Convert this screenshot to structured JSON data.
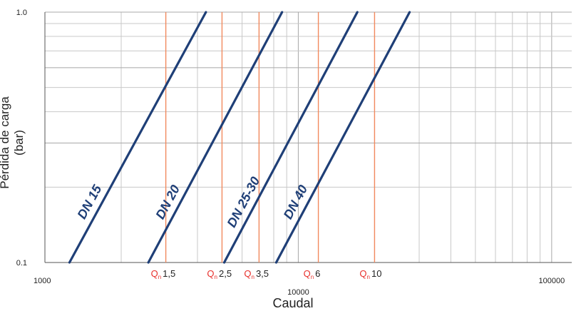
{
  "chart_data": {
    "type": "line",
    "xlabel": "Caudal",
    "ylabel": "Pérdida de carga (bar)",
    "x_scale": "log",
    "y_scale": "log",
    "xlim": [
      1000,
      120000
    ],
    "ylim": [
      0.1,
      1.0
    ],
    "x_ticks": [
      {
        "value": 1000,
        "label": "1000"
      },
      {
        "value": 10000,
        "label": "10000"
      },
      {
        "value": 100000,
        "label": "100000"
      }
    ],
    "y_ticks": [
      {
        "value": 0.1,
        "label": "0.1"
      },
      {
        "value": 1.0,
        "label": "1.0"
      }
    ],
    "grid": true,
    "series": [
      {
        "name": "DN 15",
        "x": [
          1250,
          4320
        ],
        "y": [
          0.1,
          1.0
        ]
      },
      {
        "name": "DN 20",
        "x": [
          2560,
          8630
        ],
        "y": [
          0.1,
          1.0
        ]
      },
      {
        "name": "DN 25-30",
        "x": [
          5100,
          17100
        ],
        "y": [
          0.1,
          1.0
        ]
      },
      {
        "name": "DN 40",
        "x": [
          8180,
          27500
        ],
        "y": [
          0.1,
          1.0
        ]
      }
    ],
    "reference_lines": [
      {
        "label_q": "Q",
        "label_sub": "n",
        "label_value": "1,5",
        "x": 3000
      },
      {
        "label_q": "Q",
        "label_sub": "n",
        "label_value": "2,5",
        "x": 5000
      },
      {
        "label_q": "Q",
        "label_sub": "n",
        "label_value": "3,5",
        "x": 7000
      },
      {
        "label_q": "Q",
        "label_sub": "n",
        "label_value": "6",
        "x": 12000
      },
      {
        "label_q": "Q",
        "label_sub": "n",
        "label_value": "10",
        "x": 20000
      }
    ],
    "colors": {
      "series_line": "#1f3f77",
      "reference_line": "#f28a5e",
      "reference_label": "#e8302c",
      "grid": "#c8c8c8",
      "grid_major": "#a8a8a8",
      "text": "#222222"
    }
  }
}
